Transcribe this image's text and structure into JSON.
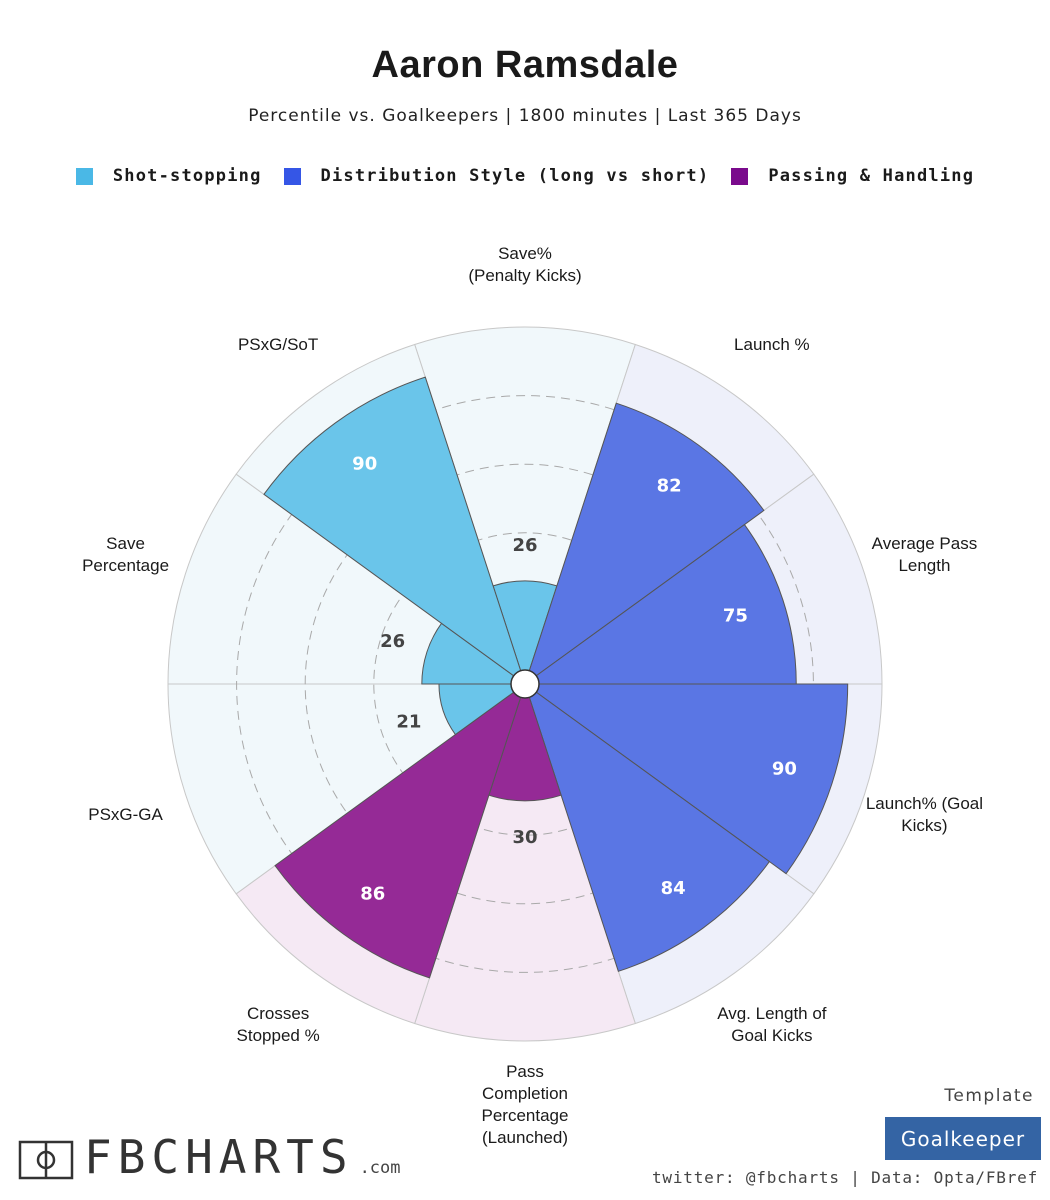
{
  "header": {
    "title": "Aaron Ramsdale",
    "subtitle": "Percentile vs. Goalkeepers | 1800 minutes | Last 365 Days"
  },
  "legend": [
    {
      "label": "Shot-stopping",
      "color": "#4ab8e6"
    },
    {
      "label": "Distribution Style (long vs short)",
      "color": "#3556e6"
    },
    {
      "label": "Passing & Handling",
      "color": "#7a0a8c"
    }
  ],
  "chart_data": {
    "type": "polar-bar",
    "scale": [
      0,
      100
    ],
    "categories": [
      {
        "label": [
          "Save%",
          "(Penalty Kicks)"
        ],
        "value": 26,
        "group": "Shot-stopping"
      },
      {
        "label": [
          "Launch %"
        ],
        "value": 82,
        "group": "Distribution Style (long vs short)"
      },
      {
        "label": [
          "Average Pass",
          "Length"
        ],
        "value": 75,
        "group": "Distribution Style (long vs short)"
      },
      {
        "label": [
          "Launch% (Goal",
          "Kicks)"
        ],
        "value": 90,
        "group": "Distribution Style (long vs short)"
      },
      {
        "label": [
          "Avg. Length of",
          "Goal Kicks"
        ],
        "value": 84,
        "group": "Distribution Style (long vs short)"
      },
      {
        "label": [
          "Pass",
          "Completion",
          "Percentage",
          "(Launched)"
        ],
        "value": 30,
        "group": "Passing & Handling"
      },
      {
        "label": [
          "Crosses",
          "Stopped %"
        ],
        "value": 86,
        "group": "Passing & Handling"
      },
      {
        "label": [
          "PSxG-GA"
        ],
        "value": 21,
        "group": "Shot-stopping"
      },
      {
        "label": [
          "Save",
          "Percentage"
        ],
        "value": 26,
        "group": "Shot-stopping"
      },
      {
        "label": [
          "PSxG/SoT"
        ],
        "value": 90,
        "group": "Shot-stopping"
      }
    ],
    "colors": {
      "Shot-stopping": {
        "fill": "#6ac5ea",
        "background": "#f1f8fb"
      },
      "Distribution Style (long vs short)": {
        "fill": "#5a76e4",
        "background": "#eef0fa"
      },
      "Passing & Handling": {
        "fill": "#952a96",
        "background": "#f5e9f4"
      }
    }
  },
  "footer": {
    "logo_text": "FBCHARTS",
    "logo_suffix": ".com",
    "template_label": "Template",
    "template_badge": "Goalkeeper",
    "credits": "twitter: @fbcharts | Data: Opta/FBref"
  }
}
